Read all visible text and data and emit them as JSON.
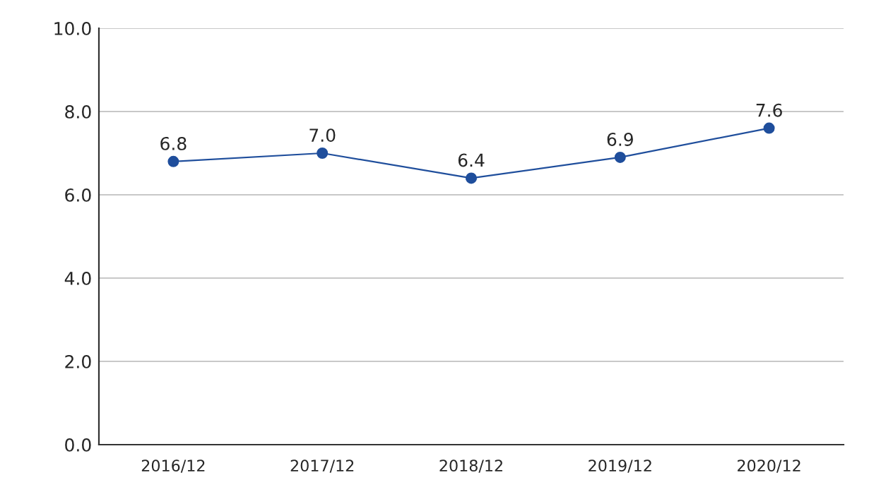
{
  "chart_data": {
    "type": "line",
    "categories": [
      "2016/12",
      "2017/12",
      "2018/12",
      "2019/12",
      "2020/12"
    ],
    "series": [
      {
        "color": "#1f4e9c",
        "values": [
          6.8,
          7.0,
          6.4,
          6.9,
          7.6
        ],
        "value_labels": [
          "6.8",
          "7.0",
          "6.4",
          "6.9",
          "7.6"
        ]
      }
    ],
    "ylim": [
      0,
      10
    ],
    "yticks": [
      {
        "value": 0,
        "label": "0.0"
      },
      {
        "value": 2,
        "label": "2.0"
      },
      {
        "value": 4,
        "label": "4.0"
      },
      {
        "value": 6,
        "label": "6.0"
      },
      {
        "value": 8,
        "label": "8.0"
      },
      {
        "value": 10,
        "label": "10.0"
      }
    ],
    "grid": "y",
    "marker": "circle",
    "line_style": "solid"
  }
}
